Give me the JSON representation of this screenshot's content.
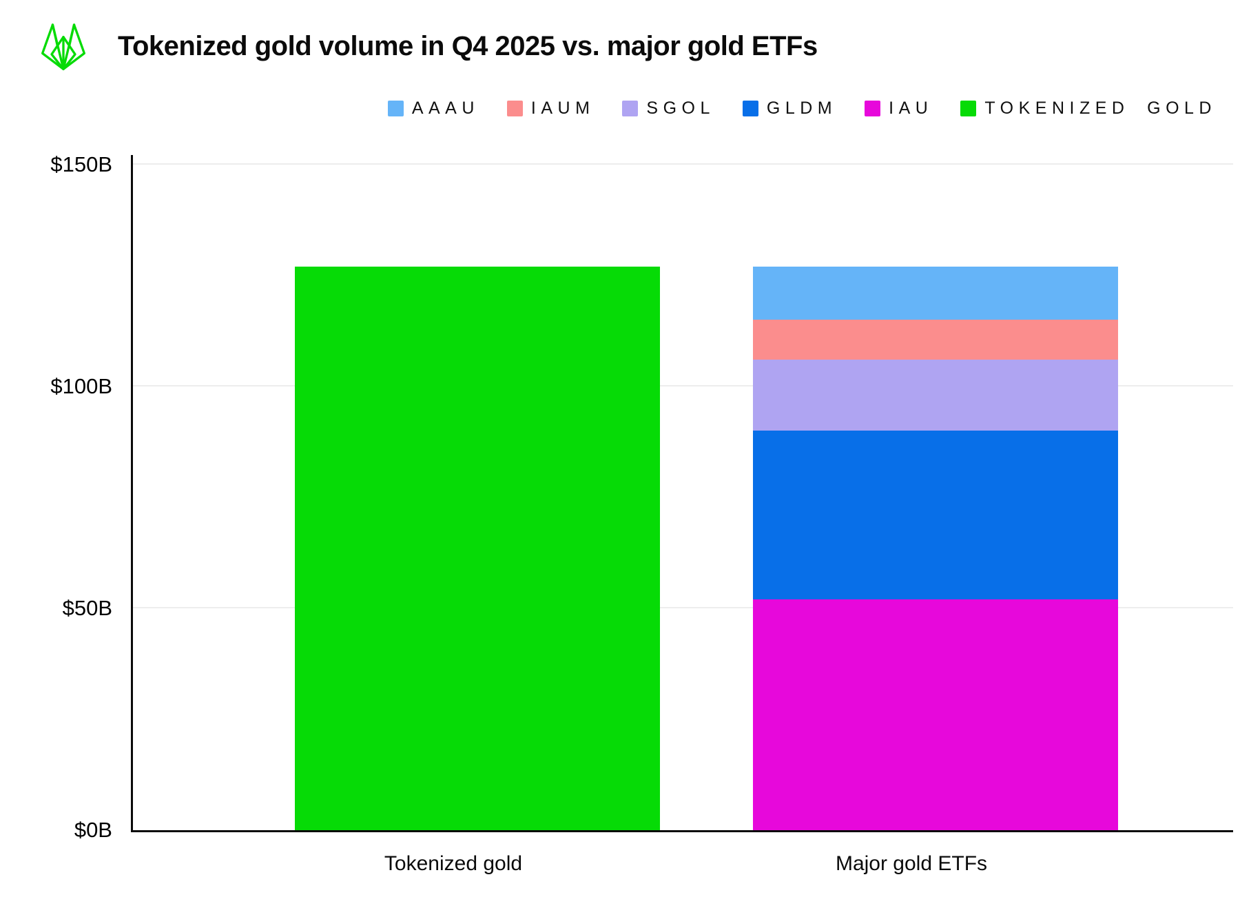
{
  "header": {
    "title": "Tokenized gold volume in Q4 2025 vs. major gold ETFs"
  },
  "colors": {
    "accent_green": "#06DB06",
    "axis": "#0a0a0a",
    "gridline": "#ededed"
  },
  "icons": {
    "logo": "fox-wireframe-logo"
  },
  "chart_data": {
    "type": "bar",
    "stacked": true,
    "title": "Tokenized gold volume in Q4 2025 vs. major gold ETFs",
    "units": "USD billions",
    "categories": [
      "Tokenized gold",
      "Major gold ETFs"
    ],
    "series": [
      {
        "name": "IAU",
        "color": "#E708DB",
        "values": [
          0,
          52
        ]
      },
      {
        "name": "GLDM",
        "color": "#086FE8",
        "values": [
          0,
          38
        ]
      },
      {
        "name": "SGOL",
        "color": "#AFA4F2",
        "values": [
          0,
          16
        ]
      },
      {
        "name": "IAUM",
        "color": "#FB8D8D",
        "values": [
          0,
          9
        ]
      },
      {
        "name": "AAAU",
        "color": "#65B4F8",
        "values": [
          0,
          12
        ]
      },
      {
        "name": "TOKENIZED GOLD",
        "color": "#06DB06",
        "values": [
          127,
          0
        ]
      }
    ],
    "legend": [
      "AAAU",
      "IAUM",
      "SGOL",
      "GLDM",
      "IAU",
      "TOKENIZED GOLD"
    ],
    "legend_position": "top-right",
    "ylim": [
      0,
      150
    ],
    "yticks": [
      {
        "value": 0,
        "label": "$0B"
      },
      {
        "value": 50,
        "label": "$50B"
      },
      {
        "value": 100,
        "label": "$100B"
      },
      {
        "value": 150,
        "label": "$150B"
      }
    ],
    "grid": true,
    "xlabel": "",
    "ylabel": ""
  }
}
